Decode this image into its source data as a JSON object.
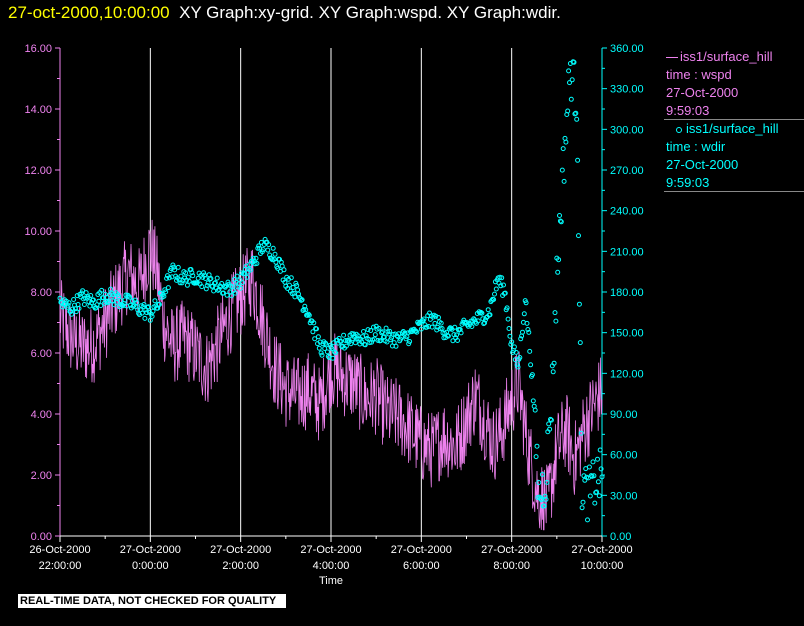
{
  "header": {
    "time": "27-oct-2000,10:00:00",
    "graphs": "XY Graph:xy-grid.  XY Graph:wspd.  XY Graph:wdir."
  },
  "legend": {
    "wspd": {
      "station": "iss1/surface_hill",
      "var": "time : wspd",
      "date": "27-Oct-2000",
      "time": "9:59:03",
      "color": "#ee82ee"
    },
    "wdir": {
      "station": "iss1/surface_hill",
      "var": "time : wdir",
      "date": "27-Oct-2000",
      "time": "9:59:03",
      "color": "#00ffff"
    }
  },
  "notice": "REAL-TIME DATA, NOT CHECKED FOR QUALITY",
  "chart_data": {
    "type": "line",
    "xlabel": "Time",
    "xlim": [
      -2,
      10
    ],
    "x_ticks": [
      {
        "x": -2,
        "date": "26-Oct-2000",
        "time": "22:00:00"
      },
      {
        "x": 0,
        "date": "27-Oct-2000",
        "time": "0:00:00"
      },
      {
        "x": 2,
        "date": "27-Oct-2000",
        "time": "2:00:00"
      },
      {
        "x": 4,
        "date": "27-Oct-2000",
        "time": "4:00:00"
      },
      {
        "x": 6,
        "date": "27-Oct-2000",
        "time": "6:00:00"
      },
      {
        "x": 8,
        "date": "27-Oct-2000",
        "time": "8:00:00"
      },
      {
        "x": 10,
        "date": "27-Oct-2000",
        "time": "10:00:00"
      }
    ],
    "y_left": {
      "lim": [
        0,
        16
      ],
      "ticks": [
        "0.00",
        "2.00",
        "4.00",
        "6.00",
        "8.00",
        "10.00",
        "12.00",
        "14.00",
        "16.00"
      ],
      "color": "#ee82ee"
    },
    "y_right": {
      "lim": [
        0,
        360
      ],
      "ticks": [
        "0.00",
        "30.00",
        "60.00",
        "90.00",
        "120.00",
        "150.00",
        "180.00",
        "210.00",
        "240.00",
        "270.00",
        "300.00",
        "330.00",
        "360.00"
      ],
      "color": "#00ffff"
    },
    "vertical_grid": true,
    "series": [
      {
        "name": "iss1/surface_hill time : wspd",
        "axis": "left",
        "style": "line",
        "color": "#ee82ee",
        "anchors": [
          [
            -2.0,
            7.2
          ],
          [
            -1.75,
            6.5
          ],
          [
            -1.5,
            6.2
          ],
          [
            -1.25,
            6.3
          ],
          [
            -1.0,
            7.0
          ],
          [
            -0.75,
            7.8
          ],
          [
            -0.5,
            8.6
          ],
          [
            -0.25,
            8.2
          ],
          [
            0.0,
            9.5
          ],
          [
            0.15,
            8.6
          ],
          [
            0.3,
            7.0
          ],
          [
            0.5,
            6.2
          ],
          [
            0.75,
            6.5
          ],
          [
            1.0,
            6.0
          ],
          [
            1.25,
            5.5
          ],
          [
            1.5,
            6.3
          ],
          [
            1.75,
            7.2
          ],
          [
            2.0,
            7.8
          ],
          [
            2.25,
            8.5
          ],
          [
            2.5,
            7.0
          ],
          [
            2.75,
            5.5
          ],
          [
            3.0,
            4.8
          ],
          [
            3.25,
            4.6
          ],
          [
            3.5,
            4.8
          ],
          [
            3.75,
            4.3
          ],
          [
            4.0,
            5.5
          ],
          [
            4.25,
            5.2
          ],
          [
            4.5,
            5.0
          ],
          [
            4.75,
            4.5
          ],
          [
            5.0,
            4.6
          ],
          [
            5.25,
            4.0
          ],
          [
            5.5,
            3.9
          ],
          [
            5.75,
            3.5
          ],
          [
            6.0,
            3.0
          ],
          [
            6.25,
            2.8
          ],
          [
            6.5,
            3.3
          ],
          [
            6.75,
            2.9
          ],
          [
            7.0,
            3.8
          ],
          [
            7.2,
            4.6
          ],
          [
            7.4,
            3.8
          ],
          [
            7.6,
            3.0
          ],
          [
            7.8,
            3.5
          ],
          [
            8.0,
            4.5
          ],
          [
            8.15,
            5.0
          ],
          [
            8.35,
            3.0
          ],
          [
            8.55,
            1.5
          ],
          [
            8.8,
            1.0
          ],
          [
            9.0,
            2.8
          ],
          [
            9.2,
            3.5
          ],
          [
            9.4,
            2.5
          ],
          [
            9.6,
            3.5
          ],
          [
            9.8,
            4.2
          ],
          [
            10.0,
            4.8
          ]
        ]
      },
      {
        "name": "iss1/surface_hill time : wdir",
        "axis": "right",
        "style": "scatter",
        "color": "#00ffff",
        "anchors": [
          [
            -2.0,
            172
          ],
          [
            -1.75,
            168
          ],
          [
            -1.5,
            176
          ],
          [
            -1.25,
            172
          ],
          [
            -1.0,
            178
          ],
          [
            -0.75,
            175
          ],
          [
            -0.5,
            172
          ],
          [
            -0.25,
            168
          ],
          [
            0.0,
            164
          ],
          [
            0.2,
            172
          ],
          [
            0.35,
            185
          ],
          [
            0.5,
            195
          ],
          [
            0.75,
            190
          ],
          [
            1.0,
            192
          ],
          [
            1.25,
            188
          ],
          [
            1.5,
            185
          ],
          [
            1.75,
            182
          ],
          [
            2.0,
            188
          ],
          [
            2.25,
            200
          ],
          [
            2.5,
            215
          ],
          [
            2.75,
            208
          ],
          [
            3.0,
            190
          ],
          [
            3.25,
            180
          ],
          [
            3.5,
            165
          ],
          [
            3.75,
            140
          ],
          [
            4.0,
            135
          ],
          [
            4.25,
            142
          ],
          [
            4.5,
            148
          ],
          [
            4.75,
            145
          ],
          [
            5.0,
            150
          ],
          [
            5.25,
            147
          ],
          [
            5.5,
            145
          ],
          [
            5.75,
            148
          ],
          [
            6.0,
            155
          ],
          [
            6.25,
            160
          ],
          [
            6.5,
            152
          ],
          [
            6.75,
            148
          ],
          [
            7.0,
            155
          ],
          [
            7.25,
            160
          ],
          [
            7.5,
            165
          ],
          [
            7.7,
            190
          ],
          [
            7.85,
            180
          ],
          [
            8.0,
            140
          ],
          [
            8.15,
            125
          ],
          [
            8.3,
            175
          ],
          [
            8.45,
            120
          ],
          [
            8.6,
            30
          ],
          [
            8.75,
            40
          ],
          [
            8.9,
            110
          ],
          [
            9.0,
            190
          ],
          [
            9.1,
            250
          ],
          [
            9.2,
            300
          ],
          [
            9.3,
            345
          ],
          [
            9.45,
            320
          ],
          [
            9.55,
            40
          ],
          [
            9.7,
            30
          ],
          [
            9.85,
            40
          ],
          [
            10.0,
            45
          ]
        ]
      }
    ]
  }
}
